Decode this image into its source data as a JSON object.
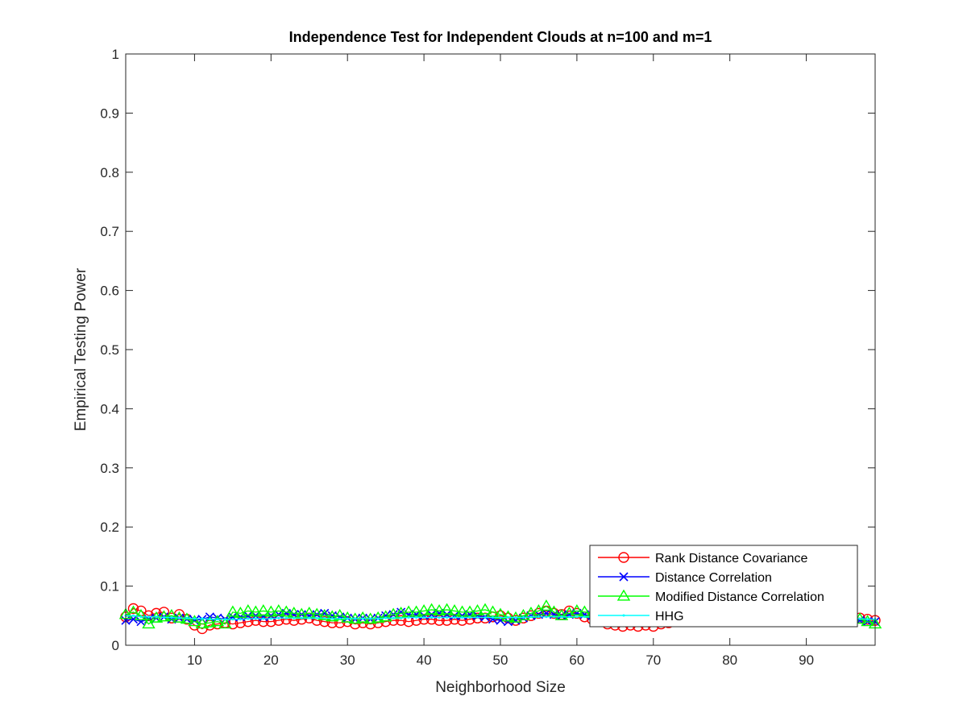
{
  "chart_data": {
    "type": "line",
    "title": "Independence Test for Independent Clouds at n=100 and m=1",
    "xlabel": "Neighborhood Size",
    "ylabel": "Empirical Testing Power",
    "xlim": [
      1,
      99
    ],
    "ylim": [
      0,
      1
    ],
    "xticks": [
      10,
      20,
      30,
      40,
      50,
      60,
      70,
      80,
      90
    ],
    "yticks": [
      0,
      0.1,
      0.2,
      0.3,
      0.4,
      0.5,
      0.6,
      0.7,
      0.8,
      0.9,
      1
    ],
    "ytick_labels": [
      "0",
      "0.1",
      "0.2",
      "0.3",
      "0.4",
      "0.5",
      "0.6",
      "0.7",
      "0.8",
      "0.9",
      "1"
    ],
    "grid": false,
    "legend_position": "bottom-right",
    "x": [
      1,
      2,
      3,
      4,
      5,
      6,
      7,
      8,
      9,
      10,
      11,
      12,
      13,
      14,
      15,
      16,
      17,
      18,
      19,
      20,
      21,
      22,
      23,
      24,
      25,
      26,
      27,
      28,
      29,
      30,
      31,
      32,
      33,
      34,
      35,
      36,
      37,
      38,
      39,
      40,
      41,
      42,
      43,
      44,
      45,
      46,
      47,
      48,
      49,
      50,
      51,
      52,
      53,
      54,
      55,
      56,
      57,
      58,
      59,
      60,
      61,
      62,
      63,
      64,
      65,
      66,
      67,
      68,
      69,
      70,
      71,
      72,
      73,
      74,
      75,
      76,
      77,
      78,
      79,
      80,
      81,
      82,
      83,
      84,
      85,
      86,
      87,
      88,
      89,
      90,
      91,
      92,
      93,
      94,
      95,
      96,
      97,
      98,
      99
    ],
    "series": [
      {
        "name": "Rank Distance Covariance",
        "color": "#ff0000",
        "marker": "circle",
        "values": [
          0.048,
          0.062,
          0.058,
          0.05,
          0.054,
          0.056,
          0.046,
          0.052,
          0.044,
          0.034,
          0.028,
          0.034,
          0.036,
          0.038,
          0.036,
          0.038,
          0.04,
          0.042,
          0.04,
          0.04,
          0.042,
          0.044,
          0.042,
          0.044,
          0.046,
          0.042,
          0.04,
          0.038,
          0.038,
          0.04,
          0.036,
          0.038,
          0.036,
          0.038,
          0.04,
          0.042,
          0.042,
          0.04,
          0.042,
          0.044,
          0.044,
          0.042,
          0.042,
          0.044,
          0.042,
          0.044,
          0.046,
          0.046,
          0.048,
          0.05,
          0.046,
          0.042,
          0.046,
          0.05,
          0.054,
          0.058,
          0.054,
          0.052,
          0.058,
          0.054,
          0.048,
          0.044,
          0.04,
          0.036,
          0.034,
          0.032,
          0.034,
          0.032,
          0.034,
          0.032,
          0.036,
          0.038,
          0.04,
          0.042,
          0.04,
          0.042,
          0.044,
          0.042,
          0.044,
          0.046,
          0.044,
          0.042,
          0.044,
          0.046,
          0.044,
          0.046,
          0.048,
          0.046,
          0.044,
          0.046,
          0.048,
          0.046,
          0.044,
          0.046,
          0.044,
          0.046,
          0.046,
          0.044,
          0.042
        ]
      },
      {
        "name": "Distance Correlation",
        "color": "#0000ff",
        "marker": "x",
        "values": [
          0.042,
          0.044,
          0.04,
          0.044,
          0.046,
          0.048,
          0.044,
          0.046,
          0.044,
          0.042,
          0.044,
          0.048,
          0.046,
          0.044,
          0.048,
          0.048,
          0.05,
          0.05,
          0.048,
          0.05,
          0.052,
          0.054,
          0.052,
          0.052,
          0.05,
          0.052,
          0.054,
          0.05,
          0.048,
          0.046,
          0.044,
          0.046,
          0.044,
          0.046,
          0.05,
          0.052,
          0.056,
          0.052,
          0.052,
          0.05,
          0.052,
          0.054,
          0.052,
          0.05,
          0.05,
          0.052,
          0.05,
          0.048,
          0.044,
          0.042,
          0.04,
          0.042,
          0.046,
          0.05,
          0.052,
          0.054,
          0.052,
          0.05,
          0.052,
          0.054,
          0.052,
          0.05,
          0.05,
          0.048,
          0.048,
          0.05,
          0.048,
          0.046,
          0.048,
          0.05,
          0.048,
          0.048,
          0.046,
          0.048,
          0.05,
          0.048,
          0.046,
          0.048,
          0.05,
          0.048,
          0.046,
          0.048,
          0.046,
          0.048,
          0.05,
          0.048,
          0.046,
          0.048,
          0.046,
          0.044,
          0.046,
          0.048,
          0.046,
          0.044,
          0.046,
          0.044,
          0.042,
          0.04,
          0.04
        ]
      },
      {
        "name": "Modified Distance Correlation",
        "color": "#00ff00",
        "marker": "triangle",
        "values": [
          0.052,
          0.056,
          0.05,
          0.036,
          0.046,
          0.048,
          0.05,
          0.046,
          0.044,
          0.04,
          0.036,
          0.038,
          0.04,
          0.036,
          0.056,
          0.054,
          0.058,
          0.056,
          0.058,
          0.056,
          0.058,
          0.056,
          0.054,
          0.052,
          0.054,
          0.052,
          0.05,
          0.048,
          0.05,
          0.046,
          0.044,
          0.046,
          0.044,
          0.046,
          0.048,
          0.052,
          0.054,
          0.056,
          0.056,
          0.058,
          0.06,
          0.058,
          0.06,
          0.058,
          0.056,
          0.056,
          0.058,
          0.06,
          0.056,
          0.052,
          0.048,
          0.046,
          0.05,
          0.054,
          0.058,
          0.066,
          0.056,
          0.05,
          0.054,
          0.058,
          0.056,
          0.054,
          0.052,
          0.05,
          0.05,
          0.052,
          0.05,
          0.048,
          0.05,
          0.052,
          0.05,
          0.048,
          0.05,
          0.048,
          0.05,
          0.052,
          0.05,
          0.048,
          0.05,
          0.052,
          0.05,
          0.048,
          0.05,
          0.048,
          0.05,
          0.048,
          0.046,
          0.048,
          0.05,
          0.048,
          0.046,
          0.048,
          0.046,
          0.044,
          0.046,
          0.048,
          0.044,
          0.04,
          0.036
        ]
      },
      {
        "name": "HHG",
        "color": "#00ffff",
        "marker": "point",
        "values": [
          0.05,
          0.05,
          0.048,
          0.048,
          0.048,
          0.047,
          0.047,
          0.046,
          0.046,
          0.045,
          0.045,
          0.044,
          0.044,
          0.044,
          0.044,
          0.044,
          0.045,
          0.045,
          0.045,
          0.045,
          0.046,
          0.046,
          0.046,
          0.046,
          0.046,
          0.046,
          0.046,
          0.045,
          0.045,
          0.045,
          0.045,
          0.045,
          0.045,
          0.045,
          0.046,
          0.046,
          0.046,
          0.047,
          0.047,
          0.047,
          0.047,
          0.047,
          0.047,
          0.047,
          0.047,
          0.047,
          0.047,
          0.047,
          0.047,
          0.047,
          0.047,
          0.047,
          0.047,
          0.048,
          0.048,
          0.048,
          0.048,
          0.048,
          0.048,
          0.048,
          0.048,
          0.048,
          0.048,
          0.048,
          0.048,
          0.048,
          0.048,
          0.048,
          0.048,
          0.048,
          0.048,
          0.048,
          0.048,
          0.048,
          0.048,
          0.048,
          0.048,
          0.048,
          0.048,
          0.048,
          0.048,
          0.048,
          0.048,
          0.048,
          0.048,
          0.048,
          0.048,
          0.048,
          0.048,
          0.048,
          0.047,
          0.047,
          0.047,
          0.047,
          0.046,
          0.046,
          0.045,
          0.044,
          0.044
        ]
      }
    ]
  }
}
